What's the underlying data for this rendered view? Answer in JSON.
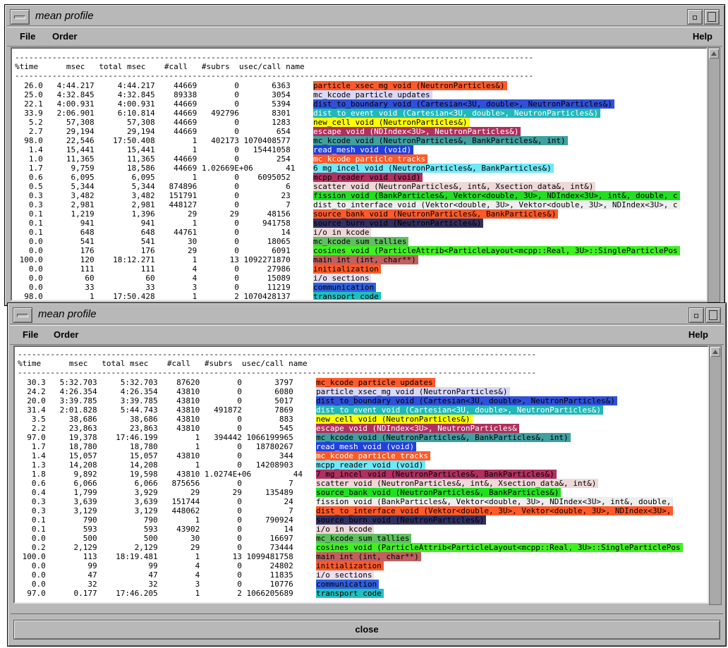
{
  "windows": [
    {
      "title": "mean profile",
      "menu": {
        "file": "File",
        "order": "Order",
        "help": "Help"
      },
      "ruler": "---------------------------------------------------------------------------------------------------------------",
      "header": "%time      msec   total msec    #call   #subrs  usec/call name",
      "rows": [
        {
          "nums": "  26.0   4:44.217     4:44.217    44669        0       6363",
          "name": "particle_xsec_mg void (NeutronParticles&)",
          "color": "#ff5a28",
          "fg": "#000000"
        },
        {
          "nums": "  25.0   4:32.845     4:32.845    89338        0       3054",
          "name": "mc_kcode particle updates",
          "color": "#d8d8f8",
          "fg": "#000000"
        },
        {
          "nums": "  22.1   4:00.931     4:00.931    44669        0       5394",
          "name": "dist_to_boundary void (Cartesian<3U, double>, NeutronParticles&)",
          "color": "#3050d8",
          "fg": "#000000"
        },
        {
          "nums": "  33.9   2:06.901     6:10.814    44669   492796       8301",
          "name": "dist_to_event void (Cartesian<3U, double>, NeutronParticles&)",
          "color": "#20b8b8",
          "fg": "#ffffff"
        },
        {
          "nums": "   5.2     57,308       57,308    44669        0       1283",
          "name": "new_cell void (NeutronParticles&)",
          "color": "#ffff00",
          "fg": "#000000"
        },
        {
          "nums": "   2.7     29,194       29,194    44669        0        654",
          "name": "escape void (NDIndex<3U>, NeutronParticles&)",
          "color": "#b03060",
          "fg": "#ffffff"
        },
        {
          "nums": "  98.0     22,546    17:50.408        1   402173 1070408577",
          "name": "mc_kcode void (NeutronParticles&, BankParticles&, int)",
          "color": "#40a0a0",
          "fg": "#000000"
        },
        {
          "nums": "   1.4     15,441       15,441        1        0   15441058",
          "name": "read_mesh void (void)",
          "color": "#2040e0",
          "fg": "#ffffff"
        },
        {
          "nums": "   1.0     11,365       11,365    44669        0        254",
          "name": "mc_kcode particle tracks",
          "color": "#ff5a28",
          "fg": "#ffffff"
        },
        {
          "nums": "   1.7      9,759       18,586    44669 1.02669E+06       41",
          "name": "6 mg_incel void (NeutronParticles&, BankParticles&)",
          "color": "#70e8f8",
          "fg": "#000000"
        },
        {
          "nums": "   0.6      6,095        6,095        1        0    6095052",
          "name": "mcpp_reader void (void)",
          "color": "#b03060",
          "fg": "#000000"
        },
        {
          "nums": "   0.5      5,344        5,344   874896        0          6",
          "name": "scatter void (NeutronParticles&, int&, Xsection_data&, int&)",
          "color": "#eed8d8",
          "fg": "#000000"
        },
        {
          "nums": "   0.3      3,482        3,482   151791        0         23",
          "name": "fission void (BankParticles&, Vektor<double, 3U>, NDIndex<3U>, int&, double, c",
          "color": "#20e020",
          "fg": "#000000"
        },
        {
          "nums": "   0.3      2,981        2,981   448127        0          7",
          "name": "dist_to_interface void (Vektor<double, 3U>, Vektor<double, 3U>, NDIndex<3U>, c",
          "color": "#eeeeee",
          "fg": "#000000"
        },
        {
          "nums": "   0.1      1,219        1,396       29       29      48156",
          "name": "source_bank void (NeutronParticles&, BankParticles&)",
          "color": "#ff5a28",
          "fg": "#000000"
        },
        {
          "nums": "   0.1        941          941        1        0     941758",
          "name": "source_burn void (NeutronParticles&)",
          "color": "#303060",
          "fg": "#000000"
        },
        {
          "nums": "   0.1        648          648    44761        0         14",
          "name": "i/o in kcode",
          "color": "#eed8d8",
          "fg": "#000000"
        },
        {
          "nums": "   0.0        541          541       30        0      18065",
          "name": "mc_kcode sum tallies",
          "color": "#60c060",
          "fg": "#000000"
        },
        {
          "nums": "   0.0        176          176       29        0       6091",
          "name": "cosines void (ParticleAttrib<ParticleLayout<mcpp::Real, 3U>::SingleParticlePos",
          "color": "#40f020",
          "fg": "#000000"
        },
        {
          "nums": " 100.0        120    18:12.271        1       13 1092271870",
          "name": "main int (int, char**)",
          "color": "#c06060",
          "fg": "#000000"
        },
        {
          "nums": "   0.0        111          111        4        0      27986",
          "name": "initialization",
          "color": "#ff5a28",
          "fg": "#000000"
        },
        {
          "nums": "   0.0         60           60        4        0      15089",
          "name": "i/o sections",
          "color": "#e8e0f0",
          "fg": "#000000"
        },
        {
          "nums": "   0.0         33           33        3        0      11219",
          "name": "communication",
          "color": "#3060e0",
          "fg": "#000000"
        },
        {
          "nums": "  98.0          1    17:50.428        1        2 1070428137",
          "name": "transport code",
          "color": "#20c0c0",
          "fg": "#000000"
        }
      ]
    },
    {
      "title": "mean profile",
      "menu": {
        "file": "File",
        "order": "Order",
        "help": "Help"
      },
      "ruler": "---------------------------------------------------------------------------------------------------------------",
      "header": "%time      msec   total msec    #call   #subrs  usec/call name",
      "rows": [
        {
          "nums": "  30.3   5:32.703     5:32.703    87620        0       3797",
          "name": "mc_kcode particle updates",
          "color": "#ff5a28",
          "fg": "#000000"
        },
        {
          "nums": "  24.2   4:26.354     4:26.354    43810        0       6080",
          "name": "particle_xsec_mg void (NeutronParticles&)",
          "color": "#d8d8f8",
          "fg": "#000000"
        },
        {
          "nums": "  20.0   3:39.785     3:39.785    43810        0       5017",
          "name": "dist_to_boundary void (Cartesian<3U, double>, NeutronParticles&)",
          "color": "#3050d8",
          "fg": "#000000"
        },
        {
          "nums": "  31.4   2:01.828     5:44.743    43810   491872       7869",
          "name": "dist_to_event void (Cartesian<3U, double>, NeutronParticles&)",
          "color": "#20b8b8",
          "fg": "#ffffff"
        },
        {
          "nums": "   3.5     38,686       38,686    43810        0        883",
          "name": "new_cell void (NeutronParticles&)",
          "color": "#ffff00",
          "fg": "#000000"
        },
        {
          "nums": "   2.2     23,863       23,863    43810        0        545",
          "name": "escape void (NDIndex<3U>, NeutronParticles&",
          "color": "#b03060",
          "fg": "#ffffff"
        },
        {
          "nums": "  97.0     19,378    17:46.199        1   394442 1066199965",
          "name": "mc_kcode void (NeutronParticles&, BankParticles&, int)",
          "color": "#40a0a0",
          "fg": "#000000"
        },
        {
          "nums": "   1.7     18,780       18,780        1        0   18780267",
          "name": "read_mesh void (void)",
          "color": "#2040e0",
          "fg": "#ffffff"
        },
        {
          "nums": "   1.4     15,057       15,057    43810        0        344",
          "name": "mc_kcode particle tracks",
          "color": "#ff5a28",
          "fg": "#ffffff"
        },
        {
          "nums": "   1.3     14,208       14,208        1        0   14208903",
          "name": "mcpp_reader void (void)",
          "color": "#70e8f8",
          "fg": "#000000"
        },
        {
          "nums": "   1.8      9,892       19,598    43810 1.0274E+06         44",
          "name": "7 mg_incel void (NeutronParticles&, BankParticles&)",
          "color": "#b03060",
          "fg": "#000000"
        },
        {
          "nums": "   0.6      6,066        6,066   875656        0          7",
          "name": "scatter void (NeutronParticles&, int&, Xsection_data&, int&)",
          "color": "#eed8d8",
          "fg": "#000000"
        },
        {
          "nums": "   0.4      1,799        3,929       29       29     135489",
          "name": "source_bank void (NeutronParticles&, BankParticles&)",
          "color": "#20e020",
          "fg": "#000000"
        },
        {
          "nums": "   0.3      3,639        3,639   151744        0         24",
          "name": "fission void (BankParticles&, Vektor<double, 3U>, NDIndex<3U>, int&, double,",
          "color": "#eeeeee",
          "fg": "#000000"
        },
        {
          "nums": "   0.3      3,129        3,129   448062        0          7",
          "name": "dist_to_interface void (Vektor<double, 3U>, Vektor<double, 3U>, NDIndex<3U>,",
          "color": "#ff5a28",
          "fg": "#000000"
        },
        {
          "nums": "   0.1        790          790        1        0     790924",
          "name": "source_burn void (NeutronParticles&)",
          "color": "#303060",
          "fg": "#000000"
        },
        {
          "nums": "   0.1        593          593    43902        0         14",
          "name": "i/o in kcode",
          "color": "#eed8d8",
          "fg": "#000000"
        },
        {
          "nums": "   0.0        500          500       30        0      16697",
          "name": "mc_kcode sum tallies",
          "color": "#60c060",
          "fg": "#000000"
        },
        {
          "nums": "   0.2      2,129        2,129       29        0      73444",
          "name": "cosines void (ParticleAttrib<ParticleLayout<mcpp::Real, 3U>::SingleParticlePos",
          "color": "#40f020",
          "fg": "#000000"
        },
        {
          "nums": " 100.0        113    18:19.481        1       13 1099481758",
          "name": "main int (int, char**)",
          "color": "#c06060",
          "fg": "#000000"
        },
        {
          "nums": "   0.0         99           99        4        0      24802",
          "name": "initialization",
          "color": "#ff5a28",
          "fg": "#000000"
        },
        {
          "nums": "   0.0         47           47        4        0      11835",
          "name": "i/o sections",
          "color": "#e8e0f0",
          "fg": "#000000"
        },
        {
          "nums": "   0.0         32           32        3        0      10776",
          "name": "communication",
          "color": "#3060e0",
          "fg": "#000000"
        },
        {
          "nums": "  97.0      0.177    17:46.205        1        2 1066205689",
          "name": "transport code",
          "color": "#20c0c0",
          "fg": "#000000"
        }
      ]
    }
  ],
  "close_label": "close"
}
